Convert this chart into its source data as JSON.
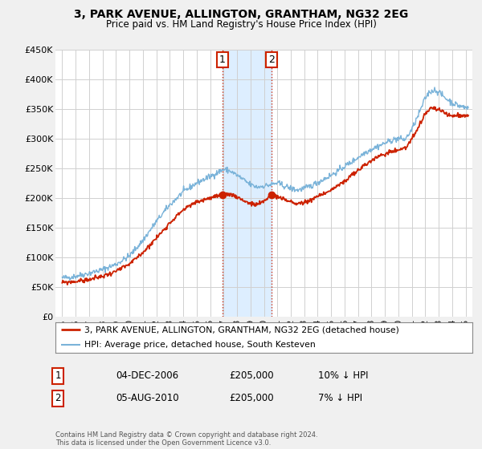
{
  "title": "3, PARK AVENUE, ALLINGTON, GRANTHAM, NG32 2EG",
  "subtitle": "Price paid vs. HM Land Registry's House Price Index (HPI)",
  "ylim": [
    0,
    450000
  ],
  "ytick_vals": [
    0,
    50000,
    100000,
    150000,
    200000,
    250000,
    300000,
    350000,
    400000,
    450000
  ],
  "ytick_labels": [
    "£0",
    "£50K",
    "£100K",
    "£150K",
    "£200K",
    "£250K",
    "£300K",
    "£350K",
    "£400K",
    "£450K"
  ],
  "xlim": [
    1994.5,
    2025.5
  ],
  "xtick_years": [
    1995,
    1996,
    1997,
    1998,
    1999,
    2000,
    2001,
    2002,
    2003,
    2004,
    2005,
    2006,
    2007,
    2008,
    2009,
    2010,
    2011,
    2012,
    2013,
    2014,
    2015,
    2016,
    2017,
    2018,
    2019,
    2020,
    2021,
    2022,
    2023,
    2024,
    2025
  ],
  "sale1_x": 2006.92,
  "sale1_y": 205000,
  "sale2_x": 2010.58,
  "sale2_y": 205000,
  "hpi_color": "#7ab3d9",
  "price_color": "#cc2200",
  "shade_color": "#ddeeff",
  "bg_color": "#f0f0f0",
  "plot_bg": "#ffffff",
  "grid_color": "#d0d0d0",
  "legend_label_price": "3, PARK AVENUE, ALLINGTON, GRANTHAM, NG32 2EG (detached house)",
  "legend_label_hpi": "HPI: Average price, detached house, South Kesteven",
  "sale1_label": "1",
  "sale1_date": "04-DEC-2006",
  "sale1_price": "£205,000",
  "sale1_hpi_txt": "10% ↓ HPI",
  "sale2_label": "2",
  "sale2_date": "05-AUG-2010",
  "sale2_price": "£205,000",
  "sale2_hpi_txt": "7% ↓ HPI",
  "footer": "Contains HM Land Registry data © Crown copyright and database right 2024.\nThis data is licensed under the Open Government Licence v3.0."
}
